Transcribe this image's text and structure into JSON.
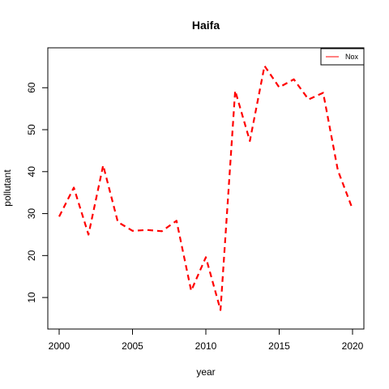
{
  "chart_data": {
    "type": "line",
    "title": "Haifa",
    "xlabel": "year",
    "ylabel": "pollutant",
    "xlim": [
      2000,
      2020
    ],
    "ylim": [
      5,
      67
    ],
    "xticks": [
      2000,
      2005,
      2010,
      2015,
      2020
    ],
    "yticks": [
      10,
      20,
      30,
      40,
      50,
      60
    ],
    "grid": false,
    "legend_position": "top-right",
    "series": [
      {
        "name": "Nox",
        "color": "#ff0000",
        "line_style": "dashed",
        "x": [
          2000,
          2001,
          2002,
          2003,
          2004,
          2005,
          2006,
          2007,
          2008,
          2009,
          2010,
          2011,
          2012,
          2013,
          2014,
          2015,
          2016,
          2017,
          2018,
          2019,
          2020
        ],
        "y": [
          29.3,
          36.2,
          25.0,
          41.5,
          28.0,
          25.9,
          26.1,
          25.8,
          28.3,
          11.6,
          19.6,
          7.0,
          59.3,
          47.3,
          65.2,
          60.1,
          62.0,
          57.2,
          58.8,
          40.3,
          31.1
        ]
      }
    ]
  }
}
